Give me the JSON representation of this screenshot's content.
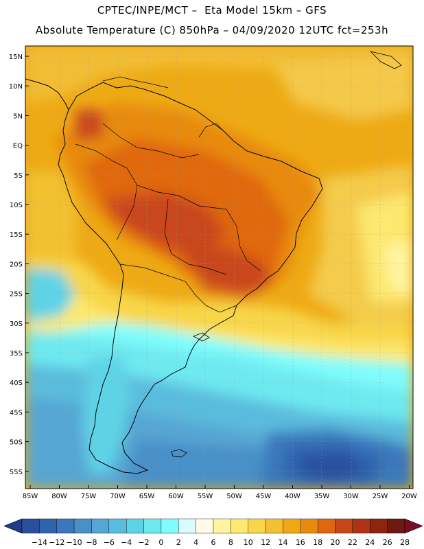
{
  "header": {
    "line1": "CPTEC/INPE/MCT –  Eta Model 15km – GFS",
    "line2": "Absolute Temperature (C) 850hPa – 04/09/2020 12UTC fct=253h"
  },
  "axes": {
    "lat_labels": [
      "15N",
      "10N",
      "5N",
      "EQ",
      "5S",
      "10S",
      "15S",
      "20S",
      "25S",
      "30S",
      "35S",
      "40S",
      "45S",
      "50S",
      "55S"
    ],
    "lon_labels": [
      "85W",
      "80W",
      "75W",
      "70W",
      "65W",
      "60W",
      "55W",
      "50W",
      "45W",
      "40W",
      "35W",
      "30W",
      "25W",
      "20W"
    ]
  },
  "colorbar": {
    "labels": [
      "-14",
      "-12",
      "-10",
      "-8",
      "-6",
      "-4",
      "-2",
      "0",
      "2",
      "4",
      "6",
      "8",
      "10",
      "12",
      "14",
      "16",
      "18",
      "20",
      "22",
      "24",
      "26",
      "28"
    ],
    "colors": [
      "#2a4f9e",
      "#2f63ad",
      "#3a78bb",
      "#4a8fc8",
      "#56a6d3",
      "#5abcdd",
      "#5fd3e6",
      "#6ee9f0",
      "#7ffdfd",
      "#d9fbff",
      "#fffbe6",
      "#fff5a0",
      "#fde870",
      "#f8d64a",
      "#f2c132",
      "#eeaa14",
      "#e88a10",
      "#e06710",
      "#c9461a",
      "#b03216",
      "#8f2410",
      "#6e1a10"
    ],
    "under_color": "#1f3b8a",
    "over_color": "#7a0d24"
  }
}
